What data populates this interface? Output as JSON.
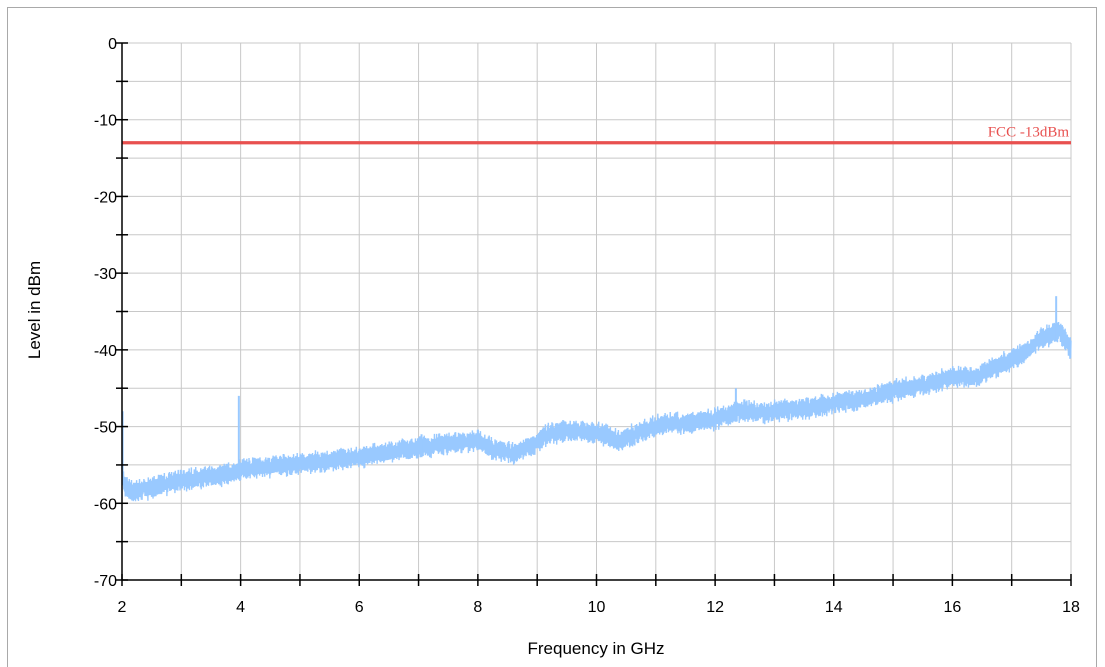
{
  "chart_data": {
    "type": "line",
    "title": "",
    "xlabel": "Frequency in GHz",
    "ylabel": "Level in dBm",
    "xlim": [
      2,
      18
    ],
    "ylim": [
      -70,
      0
    ],
    "x_ticks": [
      2,
      4,
      6,
      8,
      10,
      12,
      14,
      16,
      18
    ],
    "y_ticks": [
      0,
      -10,
      -20,
      -30,
      -40,
      -50,
      -60,
      -70
    ],
    "grid": true,
    "limit_line": {
      "label": "FCC -13dBm",
      "value": -13,
      "color": "#e8504f"
    },
    "series": [
      {
        "color": "#99c9ff",
        "x": [
          2.0,
          2.05,
          2.2,
          2.5,
          3.0,
          3.5,
          3.9,
          4.0,
          4.5,
          5.0,
          5.5,
          6.0,
          6.5,
          7.0,
          7.5,
          8.0,
          8.3,
          8.6,
          8.9,
          9.2,
          9.5,
          10.0,
          10.4,
          10.8,
          11.2,
          11.6,
          12.0,
          12.4,
          12.8,
          13.2,
          13.6,
          14.0,
          14.4,
          14.8,
          15.2,
          15.6,
          16.0,
          16.4,
          16.8,
          17.2,
          17.5,
          17.8,
          18.0
        ],
        "y": [
          -56,
          -58,
          -58.5,
          -58,
          -57,
          -56.5,
          -56,
          -55.5,
          -55.2,
          -54.8,
          -54.5,
          -54,
          -53.3,
          -52.8,
          -52.2,
          -51.8,
          -53,
          -53.5,
          -52.5,
          -51,
          -50.5,
          -50.8,
          -51.8,
          -50.5,
          -49.5,
          -49.5,
          -49,
          -48,
          -48.2,
          -47.8,
          -47.5,
          -47,
          -46.5,
          -45.8,
          -45,
          -44.5,
          -43.5,
          -43.5,
          -42,
          -40.5,
          -38.5,
          -37.5,
          -40
        ],
        "band": 2.5,
        "spikes": [
          {
            "x": 2.01,
            "y": -48
          },
          {
            "x": 3.97,
            "y": -46
          },
          {
            "x": 7.05,
            "y": -51
          },
          {
            "x": 12.35,
            "y": -45
          },
          {
            "x": 17.75,
            "y": -33
          }
        ]
      }
    ]
  }
}
